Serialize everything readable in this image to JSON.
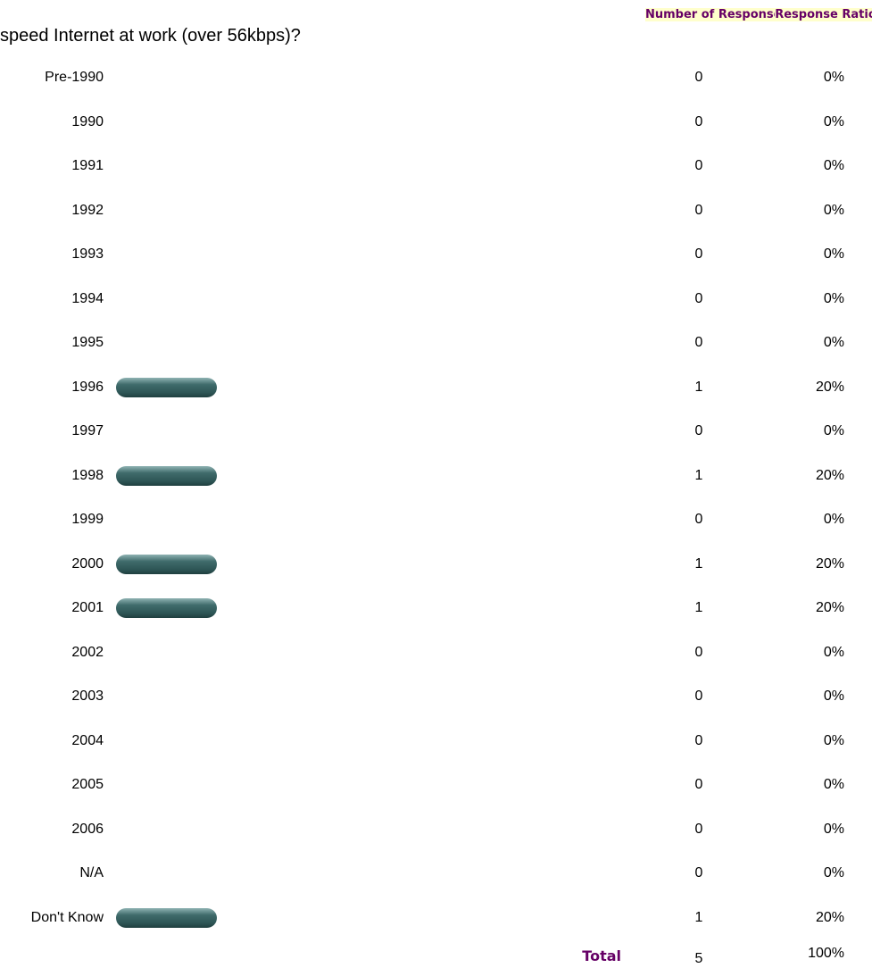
{
  "question": "speed Internet at work (over 56kbps)?",
  "headers": {
    "count": "Number of Responses",
    "ratio": "Response Ratio"
  },
  "rows": [
    {
      "label": "Pre-1990",
      "count": 0,
      "ratio": 0,
      "ratio_label": "0%"
    },
    {
      "label": "1990",
      "count": 0,
      "ratio": 0,
      "ratio_label": "0%"
    },
    {
      "label": "1991",
      "count": 0,
      "ratio": 0,
      "ratio_label": "0%"
    },
    {
      "label": "1992",
      "count": 0,
      "ratio": 0,
      "ratio_label": "0%"
    },
    {
      "label": "1993",
      "count": 0,
      "ratio": 0,
      "ratio_label": "0%"
    },
    {
      "label": "1994",
      "count": 0,
      "ratio": 0,
      "ratio_label": "0%"
    },
    {
      "label": "1995",
      "count": 0,
      "ratio": 0,
      "ratio_label": "0%"
    },
    {
      "label": "1996",
      "count": 1,
      "ratio": 20,
      "ratio_label": "20%"
    },
    {
      "label": "1997",
      "count": 0,
      "ratio": 0,
      "ratio_label": "0%"
    },
    {
      "label": "1998",
      "count": 1,
      "ratio": 20,
      "ratio_label": "20%"
    },
    {
      "label": "1999",
      "count": 0,
      "ratio": 0,
      "ratio_label": "0%"
    },
    {
      "label": "2000",
      "count": 1,
      "ratio": 20,
      "ratio_label": "20%"
    },
    {
      "label": "2001",
      "count": 1,
      "ratio": 20,
      "ratio_label": "20%"
    },
    {
      "label": "2002",
      "count": 0,
      "ratio": 0,
      "ratio_label": "0%"
    },
    {
      "label": "2003",
      "count": 0,
      "ratio": 0,
      "ratio_label": "0%"
    },
    {
      "label": "2004",
      "count": 0,
      "ratio": 0,
      "ratio_label": "0%"
    },
    {
      "label": "2005",
      "count": 0,
      "ratio": 0,
      "ratio_label": "0%"
    },
    {
      "label": "2006",
      "count": 0,
      "ratio": 0,
      "ratio_label": "0%"
    },
    {
      "label": "N/A",
      "count": 0,
      "ratio": 0,
      "ratio_label": "0%"
    },
    {
      "label": "Don't Know",
      "count": 1,
      "ratio": 20,
      "ratio_label": "20%"
    }
  ],
  "total": {
    "label": "Total",
    "count": 5,
    "ratio_label": "100%"
  }
}
